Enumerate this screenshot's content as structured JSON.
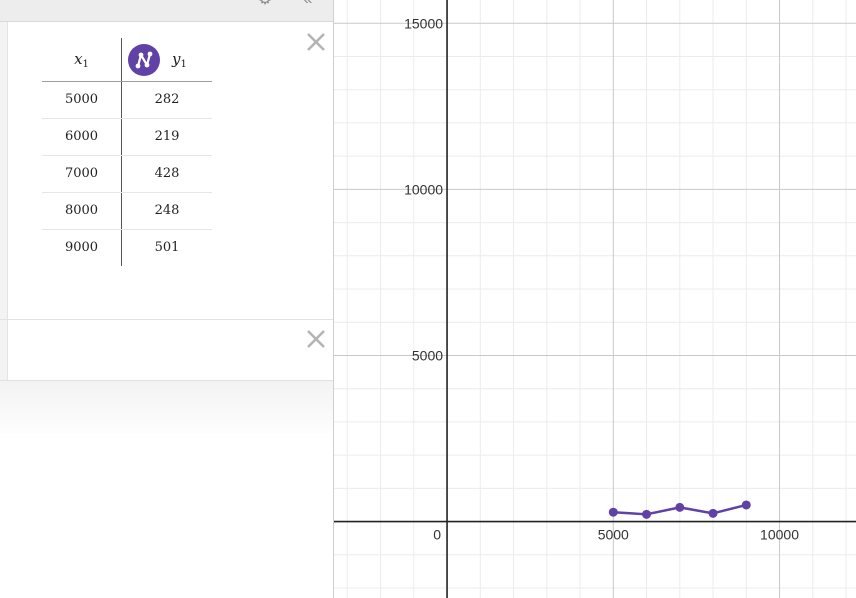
{
  "toolbar": {
    "settings_icon": "gear-icon",
    "collapse_icon": "double-chevron-left-icon"
  },
  "expressions": [
    {
      "type": "table",
      "delete_icon": "close-icon",
      "columns": [
        {
          "var": "x",
          "sub": "1"
        },
        {
          "var": "y",
          "sub": "1",
          "series_icon": "line-points-icon",
          "color": "#6042a6"
        }
      ],
      "rows": [
        {
          "x": "5000",
          "y": "282"
        },
        {
          "x": "6000",
          "y": "219"
        },
        {
          "x": "7000",
          "y": "428"
        },
        {
          "x": "8000",
          "y": "248"
        },
        {
          "x": "9000",
          "y": "501"
        }
      ]
    },
    {
      "type": "empty",
      "delete_icon": "close-icon"
    }
  ],
  "chart_data": {
    "type": "line",
    "x": [
      5000,
      6000,
      7000,
      8000,
      9000
    ],
    "series": [
      {
        "values": [
          282,
          219,
          428,
          248,
          501
        ],
        "color": "#6042a6"
      }
    ],
    "xlim": [
      -3400,
      12300
    ],
    "ylim": [
      -2300,
      15700
    ],
    "x_ticks": [
      0,
      5000,
      10000
    ],
    "x_tick_labels": [
      "0",
      "5000",
      "10000"
    ],
    "y_ticks": [
      5000,
      10000,
      15000
    ],
    "y_tick_labels": [
      "5000",
      "10000",
      "15000"
    ],
    "grid": true,
    "minor_step": 1000
  }
}
